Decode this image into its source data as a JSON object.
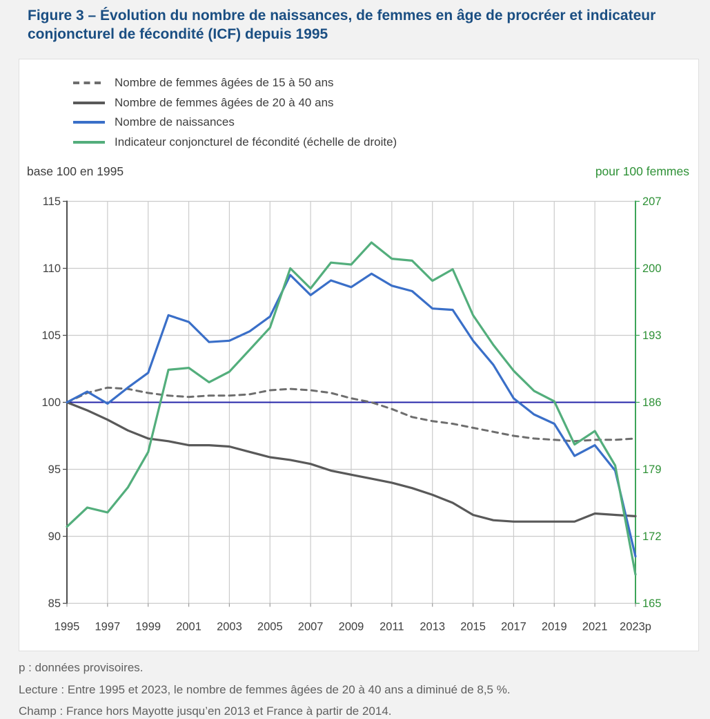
{
  "title": "Figure 3 – Évolution du nombre de naissances, de femmes en âge de procréer et indicateur conjoncturel de fécondité (ICF) depuis 1995",
  "legend": [
    {
      "label": "Nombre de femmes âgées de 15 à 50 ans",
      "style": "dashed",
      "color": "#6e6e6e"
    },
    {
      "label": "Nombre de femmes âgées de 20 à 40 ans",
      "style": "solid",
      "color": "#595959"
    },
    {
      "label": "Nombre de naissances",
      "style": "solid",
      "color": "#3a6fc8"
    },
    {
      "label": "Indicateur conjoncturel de fécondité (échelle de droite)",
      "style": "solid",
      "color": "#53ae7c"
    }
  ],
  "axis_left_title": "base 100 en 1995",
  "axis_right_title": "pour 100 femmes",
  "footnotes": [
    "p : données provisoires.",
    "Lecture : Entre 1995 et 2023, le nombre de femmes âgées de 20 à 40 ans a diminué de 8,5 %.",
    "Champ : France hors Mayotte jusqu’en 2013 et France à partir de 2014."
  ],
  "colors": {
    "title": "#1a4e82",
    "grid": "#cbcbcb",
    "left_spine": "#4d4d4d",
    "right_spine": "#3da458",
    "right_axis_text": "#2e9136",
    "tick_label": "#404040",
    "baseline_100": "#2424a8",
    "background": "#f2f2f2",
    "card": "#ffffff"
  },
  "chart_data": {
    "type": "line",
    "x": [
      1995,
      1996,
      1997,
      1998,
      1999,
      2000,
      2001,
      2002,
      2003,
      2004,
      2005,
      2006,
      2007,
      2008,
      2009,
      2010,
      2011,
      2012,
      2013,
      2014,
      2015,
      2016,
      2017,
      2018,
      2019,
      2020,
      2021,
      2022,
      2023
    ],
    "x_tick_years": [
      1995,
      1997,
      1999,
      2001,
      2003,
      2005,
      2007,
      2009,
      2011,
      2013,
      2015,
      2017,
      2019,
      2021,
      2023
    ],
    "x_tick_labels": [
      "1995",
      "1997",
      "1999",
      "2001",
      "2003",
      "2005",
      "2007",
      "2009",
      "2011",
      "2013",
      "2015",
      "2017",
      "2019",
      "2021",
      "2023p"
    ],
    "left_axis": {
      "range": [
        85,
        115
      ],
      "ticks": [
        85,
        90,
        95,
        100,
        105,
        110,
        115
      ]
    },
    "right_axis": {
      "range": [
        165,
        207
      ],
      "ticks": [
        165,
        172,
        179,
        186,
        193,
        200,
        207
      ]
    },
    "baseline_value": 100,
    "grid": true,
    "legend_position": "top-left",
    "series": [
      {
        "name": "Nombre de femmes âgées de 15 à 50 ans",
        "axis": "left",
        "style": "dashed",
        "color": "#6e6e6e",
        "values": [
          100,
          100.7,
          101.1,
          101.0,
          100.7,
          100.5,
          100.4,
          100.5,
          100.5,
          100.6,
          100.9,
          101.0,
          100.9,
          100.7,
          100.3,
          100.0,
          99.5,
          98.9,
          98.6,
          98.4,
          98.1,
          97.8,
          97.5,
          97.3,
          97.2,
          97.1,
          97.2,
          97.2,
          97.3
        ]
      },
      {
        "name": "Nombre de femmes âgées de 20 à 40 ans",
        "axis": "left",
        "style": "solid",
        "color": "#595959",
        "values": [
          100,
          99.4,
          98.7,
          97.9,
          97.3,
          97.1,
          96.8,
          96.8,
          96.7,
          96.3,
          95.9,
          95.7,
          95.4,
          94.9,
          94.6,
          94.3,
          94.0,
          93.6,
          93.1,
          92.5,
          91.6,
          91.2,
          91.1,
          91.1,
          91.1,
          91.1,
          91.7,
          91.6,
          91.5
        ]
      },
      {
        "name": "Nombre de naissances",
        "axis": "left",
        "style": "solid",
        "color": "#3a6fc8",
        "values": [
          100,
          100.8,
          99.9,
          101.1,
          102.2,
          106.5,
          106.0,
          104.5,
          104.6,
          105.3,
          106.4,
          109.5,
          108.0,
          109.1,
          108.6,
          109.6,
          108.7,
          108.3,
          107.0,
          106.9,
          104.6,
          102.8,
          100.3,
          99.1,
          98.4,
          96.0,
          96.8,
          94.9,
          88.5
        ]
      },
      {
        "name": "Indicateur conjoncturel de fécondité (échelle de droite)",
        "axis": "right",
        "style": "solid",
        "color": "#53ae7c",
        "values": [
          173.0,
          175.0,
          174.5,
          177.1,
          180.8,
          189.4,
          189.6,
          188.1,
          189.2,
          191.5,
          193.8,
          200.0,
          197.9,
          200.6,
          200.4,
          202.7,
          201.0,
          200.8,
          198.7,
          199.9,
          195.1,
          192.0,
          189.3,
          187.2,
          186.1,
          181.6,
          183.0,
          179.4,
          168.0
        ]
      }
    ]
  }
}
